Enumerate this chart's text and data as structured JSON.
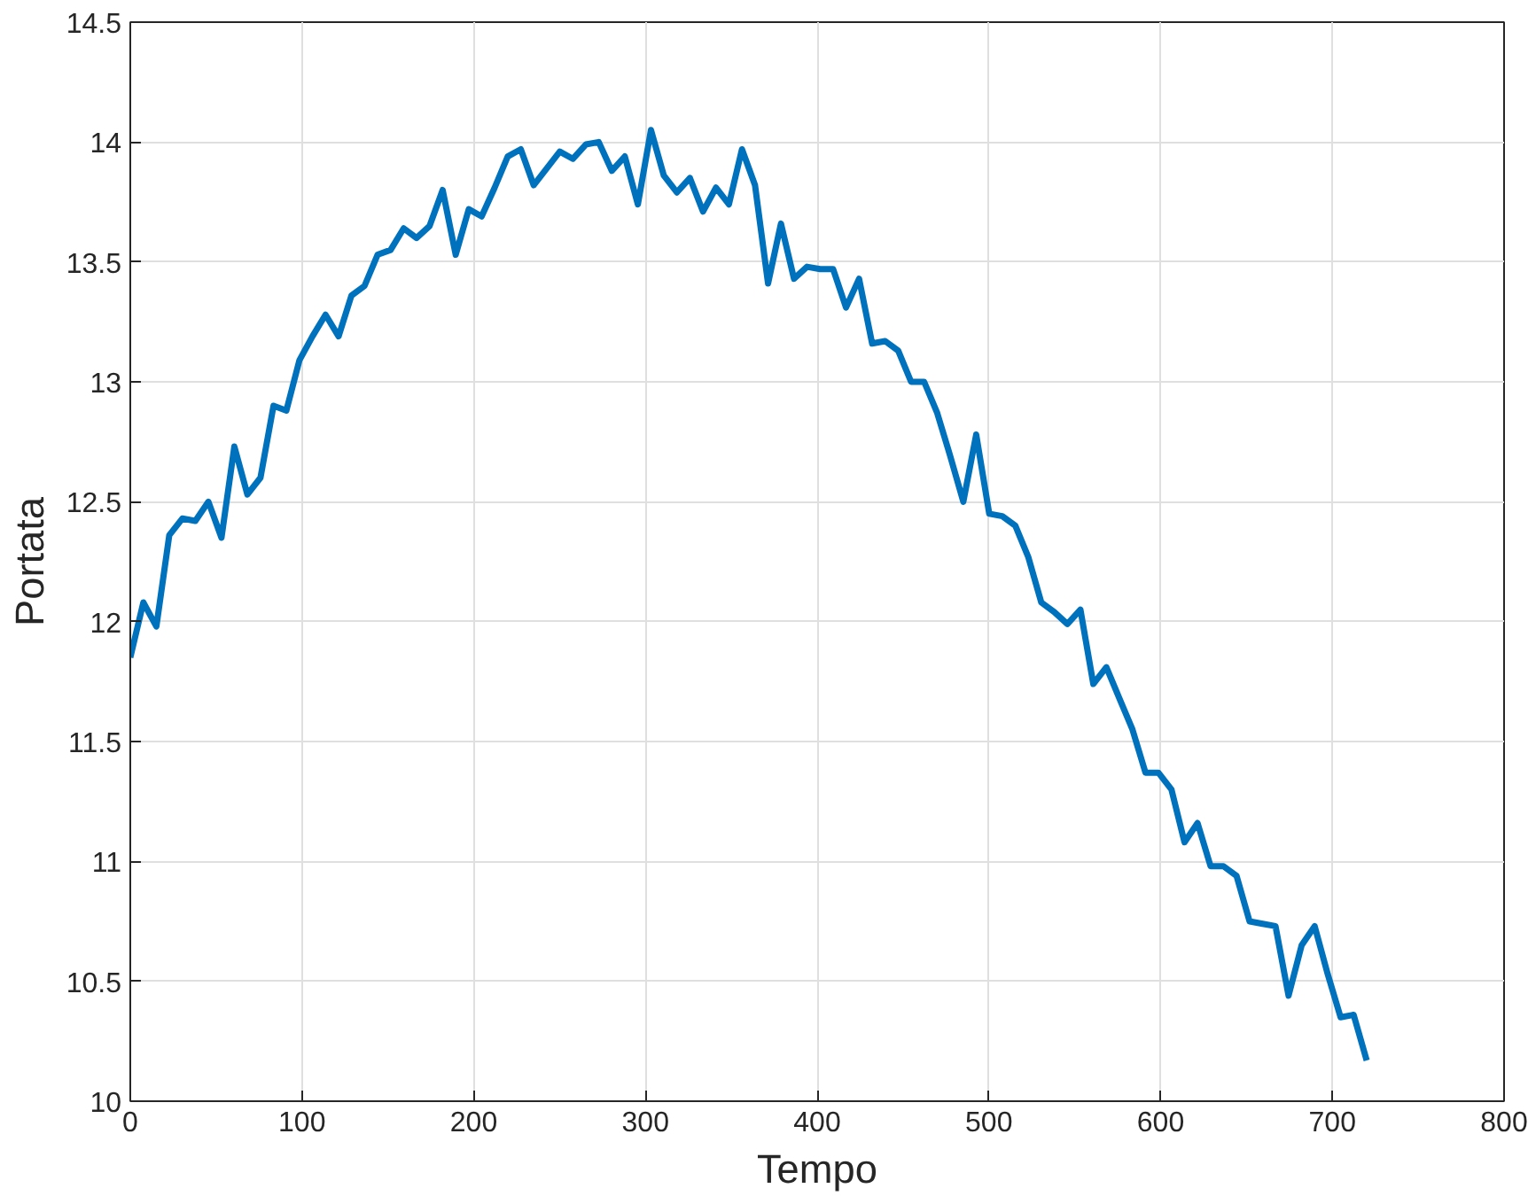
{
  "chart_data": {
    "type": "line",
    "xlabel": "Tempo",
    "ylabel": "Portata",
    "xlim": [
      0,
      800
    ],
    "ylim": [
      10,
      14.5
    ],
    "xticks": [
      0,
      100,
      200,
      300,
      400,
      500,
      600,
      700,
      800
    ],
    "yticks": [
      10,
      10.5,
      11,
      11.5,
      12,
      12.5,
      13,
      13.5,
      14,
      14.5
    ],
    "grid": true,
    "series": [
      {
        "color": "#0072bd",
        "x": [
          0,
          7.6,
          15.2,
          22.7,
          30.3,
          37.9,
          45.5,
          53.1,
          60.6,
          68.2,
          75.8,
          83.4,
          90.9,
          98.5,
          106.1,
          113.7,
          121.3,
          128.8,
          136.4,
          144,
          151.6,
          159.2,
          166.7,
          174.3,
          181.9,
          189.5,
          197.1,
          204.6,
          212.2,
          219.8,
          227.4,
          234.9,
          242.5,
          250.1,
          257.7,
          265.3,
          272.8,
          280.4,
          288,
          295.6,
          303.2,
          310.7,
          318.3,
          325.9,
          333.5,
          341.1,
          348.6,
          356.2,
          363.8,
          371.4,
          378.9,
          386.5,
          394.1,
          401.7,
          409.3,
          416.8,
          424.4,
          432,
          439.6,
          447.2,
          454.7,
          462.3,
          469.9,
          477.5,
          485.1,
          492.6,
          500.2,
          507.8,
          515.4,
          522.9,
          530.5,
          538.1,
          545.7,
          553.3,
          560.8,
          568.4,
          576,
          583.6,
          591.2,
          598.7,
          606.3,
          613.9,
          621.5,
          629.1,
          636.6,
          644.2,
          651.8,
          659.4,
          666.9,
          674.5,
          682.1,
          689.7,
          697.3,
          704.8,
          712.4,
          720
        ],
        "values": [
          11.85,
          12.08,
          11.98,
          12.36,
          12.43,
          12.42,
          12.5,
          12.35,
          12.73,
          12.53,
          12.6,
          12.9,
          12.88,
          13.09,
          13.19,
          13.28,
          13.19,
          13.36,
          13.4,
          13.53,
          13.55,
          13.64,
          13.6,
          13.65,
          13.8,
          13.53,
          13.72,
          13.69,
          13.81,
          13.94,
          13.97,
          13.82,
          13.89,
          13.96,
          13.93,
          13.99,
          14.0,
          13.88,
          13.94,
          13.74,
          14.05,
          13.86,
          13.79,
          13.85,
          13.71,
          13.81,
          13.74,
          13.97,
          13.82,
          13.41,
          13.66,
          13.43,
          13.48,
          13.47,
          13.47,
          13.31,
          13.43,
          13.16,
          13.17,
          13.13,
          13.0,
          13.0,
          12.87,
          12.69,
          12.5,
          12.78,
          12.45,
          12.44,
          12.4,
          12.27,
          12.08,
          12.04,
          11.99,
          12.05,
          11.74,
          11.81,
          11.68,
          11.55,
          11.37,
          11.37,
          11.3,
          11.08,
          11.16,
          10.98,
          10.98,
          10.94,
          10.75,
          10.74,
          10.73,
          10.44,
          10.65,
          10.73,
          10.53,
          10.35,
          10.36,
          10.17
        ]
      }
    ]
  }
}
